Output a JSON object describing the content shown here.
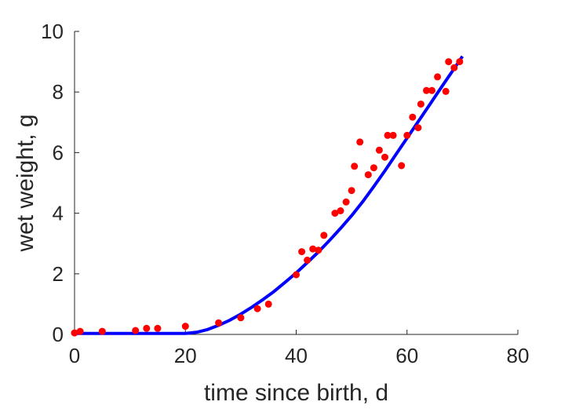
{
  "chart_data": {
    "type": "scatter",
    "xlabel": "time since birth, d",
    "ylabel": "wet weight, g",
    "xlim": [
      0,
      80
    ],
    "ylim": [
      0,
      10
    ],
    "xticks": [
      0,
      20,
      40,
      60,
      80
    ],
    "yticks": [
      0,
      2,
      4,
      6,
      8,
      10
    ],
    "grid": false,
    "series": [
      {
        "kind": "points",
        "color": "#ff0000",
        "x": [
          0,
          1,
          5,
          11,
          13,
          15,
          20,
          26,
          30,
          33,
          35,
          40,
          41,
          42,
          43,
          44,
          45,
          47,
          48,
          49,
          50,
          50.5,
          51.5,
          53,
          54,
          55,
          56,
          56.5,
          57.5,
          59,
          60,
          61,
          62,
          62.5,
          63.5,
          64.5,
          65.5,
          67,
          67.5,
          68.5,
          69.5
        ],
        "y": [
          0.05,
          0.1,
          0.1,
          0.13,
          0.2,
          0.2,
          0.27,
          0.38,
          0.55,
          0.85,
          1.0,
          1.97,
          2.73,
          2.45,
          2.82,
          2.78,
          3.27,
          4.0,
          4.08,
          4.37,
          4.75,
          5.55,
          6.35,
          5.27,
          5.5,
          6.08,
          5.85,
          6.57,
          6.57,
          5.57,
          6.57,
          7.17,
          6.82,
          7.6,
          8.05,
          8.05,
          8.5,
          8.02,
          9.0,
          8.8,
          9.0
        ]
      },
      {
        "kind": "line",
        "color": "#0000ff",
        "x": [
          0,
          20,
          22,
          24,
          26,
          28,
          30,
          32,
          34,
          36,
          38,
          40,
          42,
          44,
          46,
          48,
          50,
          52,
          54,
          56,
          58,
          60,
          62,
          64,
          66,
          68,
          70
        ],
        "y": [
          0.03,
          0.03,
          0.07,
          0.16,
          0.3,
          0.47,
          0.67,
          0.9,
          1.15,
          1.42,
          1.72,
          2.03,
          2.37,
          2.72,
          3.1,
          3.5,
          3.92,
          4.38,
          4.88,
          5.4,
          5.94,
          6.48,
          7.02,
          7.56,
          8.1,
          8.64,
          9.18
        ]
      }
    ]
  }
}
